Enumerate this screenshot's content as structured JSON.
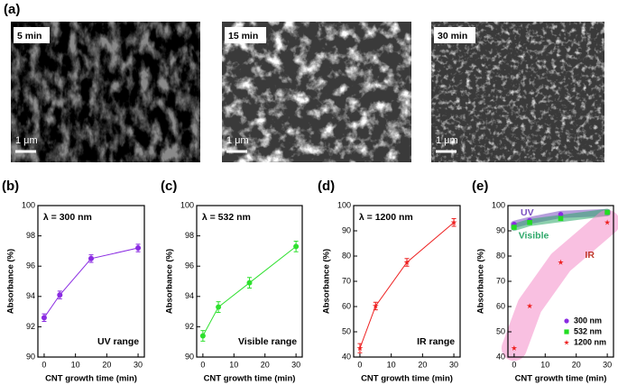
{
  "figure_a": {
    "label": "(a)",
    "images": [
      {
        "label": "5 min",
        "scale": "1 μm"
      },
      {
        "label": "15 min",
        "scale": "1 μm"
      },
      {
        "label": "30 min",
        "scale": "1 μm"
      }
    ]
  },
  "chart_data": [
    {
      "type": "line",
      "panel": "(b)",
      "xlabel": "CNT growth time (min)",
      "ylabel": "Absorbance (%)",
      "annotations": [
        "λ = 300 nm",
        "UV range"
      ],
      "x": [
        0,
        5,
        15,
        30
      ],
      "xlim": [
        -2,
        32
      ],
      "xticks": [
        0,
        10,
        20,
        30
      ],
      "ylim": [
        90,
        100
      ],
      "yticks": [
        90,
        92,
        94,
        96,
        98,
        100
      ],
      "series": [
        {
          "color": "#8a2be2",
          "marker": "circle",
          "values": [
            92.6,
            94.1,
            96.5,
            97.2
          ],
          "errors": [
            0.25,
            0.25,
            0.25,
            0.25
          ]
        }
      ]
    },
    {
      "type": "line",
      "panel": "(c)",
      "xlabel": "CNT growth time (min)",
      "ylabel": "Absorbance (%)",
      "annotations": [
        "λ = 532 nm",
        "Visible range"
      ],
      "x": [
        0,
        5,
        15,
        30
      ],
      "xlim": [
        -2,
        32
      ],
      "xticks": [
        0,
        10,
        20,
        30
      ],
      "ylim": [
        90,
        100
      ],
      "yticks": [
        90,
        92,
        94,
        96,
        98,
        100
      ],
      "series": [
        {
          "color": "#2ee02e",
          "marker": "circle",
          "values": [
            91.4,
            93.3,
            94.9,
            97.3
          ],
          "errors": [
            0.35,
            0.35,
            0.35,
            0.35
          ]
        }
      ]
    },
    {
      "type": "line",
      "panel": "(d)",
      "xlabel": "CNT growth time (min)",
      "ylabel": "Absorbance (%)",
      "annotations": [
        "λ = 1200 nm",
        "IR range"
      ],
      "x": [
        0,
        5,
        15,
        30
      ],
      "xlim": [
        -2,
        32
      ],
      "xticks": [
        0,
        10,
        20,
        30
      ],
      "ylim": [
        40,
        100
      ],
      "yticks": [
        40,
        50,
        60,
        70,
        80,
        90,
        100
      ],
      "series": [
        {
          "color": "#ee2020",
          "marker": "star",
          "values": [
            43.5,
            60.2,
            77.5,
            93.3
          ],
          "errors": [
            1.8,
            1.5,
            1.5,
            1.5
          ]
        }
      ]
    },
    {
      "type": "scatter",
      "panel": "(e)",
      "xlabel": "CNT growth time (min)",
      "ylabel": "Absorbance (%)",
      "annotations": [
        "UV",
        "Visible",
        "IR"
      ],
      "legend": "lower right",
      "x": [
        0,
        5,
        15,
        30
      ],
      "xlim": [
        -2,
        32
      ],
      "xticks": [
        0,
        10,
        20,
        30
      ],
      "ylim": [
        40,
        100
      ],
      "yticks": [
        40,
        50,
        60,
        70,
        80,
        90,
        100
      ],
      "series": [
        {
          "name": "300 nm",
          "color": "#8a2be2",
          "band": "#7a4fc0",
          "marker": "circle",
          "values": [
            92.6,
            94.1,
            96.5,
            97.2
          ]
        },
        {
          "name": "532 nm",
          "color": "#22dd22",
          "band": "#2ea86a",
          "marker": "square",
          "values": [
            91.4,
            93.3,
            94.9,
            97.3
          ]
        },
        {
          "name": "1200 nm",
          "color": "#ee2020",
          "band": "#f48cc8",
          "marker": "star",
          "values": [
            43.5,
            60.2,
            77.5,
            93.3
          ]
        }
      ]
    }
  ]
}
